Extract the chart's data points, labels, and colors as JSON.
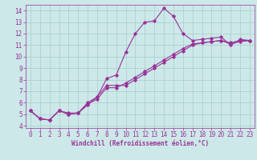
{
  "xlabel": "Windchill (Refroidissement éolien,°C)",
  "bg_color": "#cce8e8",
  "grid_color": "#aacccc",
  "line_color": "#993399",
  "xlim": [
    -0.5,
    23.5
  ],
  "ylim": [
    3.8,
    14.5
  ],
  "xticks": [
    0,
    1,
    2,
    3,
    4,
    5,
    6,
    7,
    8,
    9,
    10,
    11,
    12,
    13,
    14,
    15,
    16,
    17,
    18,
    19,
    20,
    21,
    22,
    23
  ],
  "yticks": [
    4,
    5,
    6,
    7,
    8,
    9,
    10,
    11,
    12,
    13,
    14
  ],
  "series1_x": [
    0,
    1,
    2,
    3,
    4,
    5,
    6,
    7,
    8,
    9,
    10,
    11,
    12,
    13,
    14,
    15,
    16,
    17,
    18,
    19,
    20,
    21,
    22,
    23
  ],
  "series1_y": [
    5.3,
    4.6,
    4.5,
    5.3,
    5.1,
    5.1,
    5.8,
    6.5,
    8.1,
    8.4,
    10.4,
    12.0,
    13.0,
    13.1,
    14.2,
    13.5,
    12.0,
    11.4,
    11.5,
    11.6,
    11.7,
    11.0,
    11.5,
    11.4
  ],
  "series2_x": [
    0,
    1,
    2,
    3,
    4,
    5,
    6,
    7,
    8,
    9,
    10,
    11,
    12,
    13,
    14,
    15,
    16,
    17,
    18,
    19,
    20,
    21,
    22,
    23
  ],
  "series2_y": [
    5.3,
    4.6,
    4.5,
    5.3,
    5.0,
    5.1,
    6.0,
    6.5,
    7.5,
    7.5,
    7.5,
    8.0,
    8.5,
    9.0,
    9.5,
    10.0,
    10.5,
    11.0,
    11.2,
    11.3,
    11.4,
    11.2,
    11.4,
    11.4
  ],
  "series3_x": [
    0,
    1,
    2,
    3,
    4,
    5,
    6,
    7,
    8,
    9,
    10,
    11,
    12,
    13,
    14,
    15,
    16,
    17,
    18,
    19,
    20,
    21,
    22,
    23
  ],
  "series3_y": [
    5.3,
    4.6,
    4.5,
    5.3,
    5.0,
    5.1,
    5.9,
    6.3,
    7.3,
    7.3,
    7.7,
    8.2,
    8.7,
    9.2,
    9.7,
    10.2,
    10.7,
    11.1,
    11.2,
    11.3,
    11.4,
    11.1,
    11.3,
    11.4
  ],
  "tick_fontsize": 5.5,
  "xlabel_fontsize": 5.5
}
